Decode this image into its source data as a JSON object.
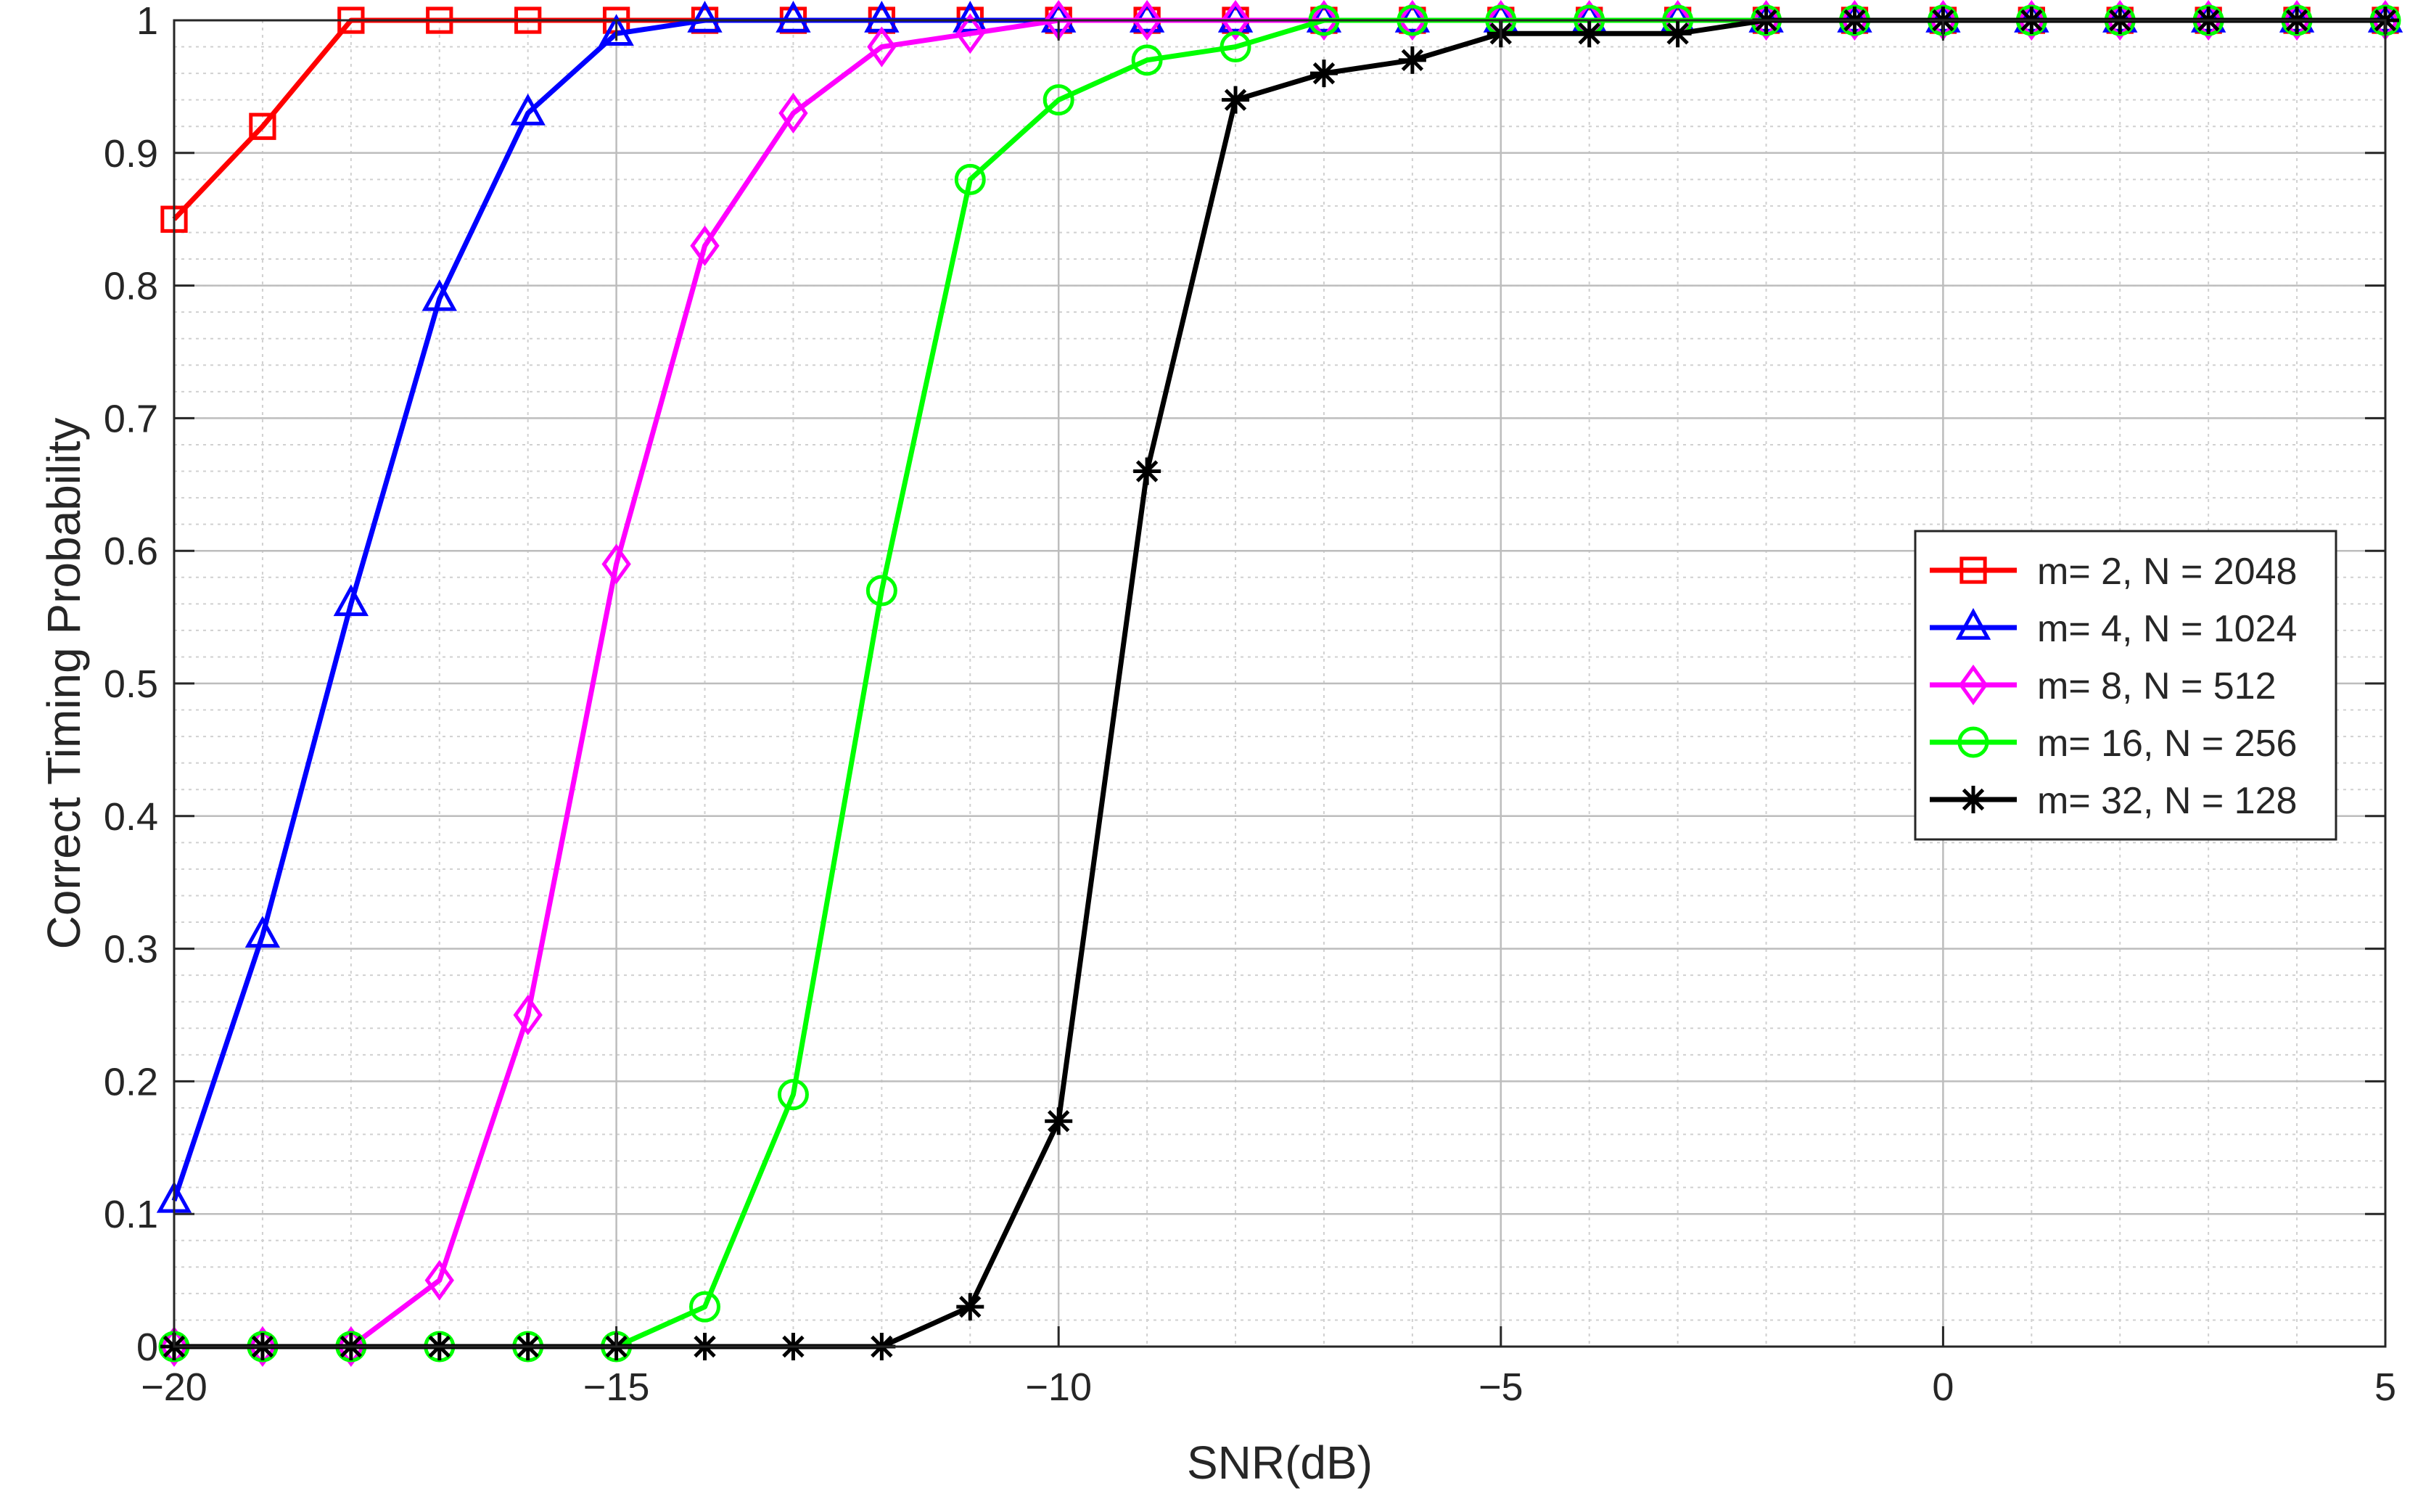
{
  "chart_data": {
    "type": "line",
    "title": "",
    "xlabel": "SNR(dB)",
    "ylabel": "Correct Timing Probability",
    "xlim": [
      -20,
      5
    ],
    "ylim": [
      0,
      1
    ],
    "x": [
      -20,
      -19,
      -18,
      -17,
      -16,
      -15,
      -14,
      -13,
      -12,
      -11,
      -10,
      -9,
      -8,
      -7,
      -6,
      -5,
      -4,
      -3,
      -2,
      -1,
      0,
      1,
      2,
      3,
      4,
      5
    ],
    "xticks": [
      -20,
      -15,
      -10,
      -5,
      0,
      5
    ],
    "xtick_labels": [
      "−20",
      "−15",
      "−10",
      "−5",
      "0",
      "5"
    ],
    "yticks": [
      0,
      0.1,
      0.2,
      0.3,
      0.4,
      0.5,
      0.6,
      0.7,
      0.8,
      0.9,
      1
    ],
    "ytick_labels": [
      "0",
      "0.1",
      "0.2",
      "0.3",
      "0.4",
      "0.5",
      "0.6",
      "0.7",
      "0.8",
      "0.9",
      "1"
    ],
    "grid": true,
    "minor_grid": true,
    "legend_position": "right",
    "series": [
      {
        "name": "m= 2, N = 2048",
        "color": "#ff0000",
        "marker": "square",
        "values": [
          0.85,
          0.92,
          1,
          1,
          1,
          1,
          1,
          1,
          1,
          1,
          1,
          1,
          1,
          1,
          1,
          1,
          1,
          1,
          1,
          1,
          1,
          1,
          1,
          1,
          1,
          1
        ]
      },
      {
        "name": "m= 4, N = 1024",
        "color": "#0000ff",
        "marker": "triangle",
        "values": [
          0.11,
          0.31,
          0.56,
          0.79,
          0.93,
          0.99,
          1,
          1,
          1,
          1,
          1,
          1,
          1,
          1,
          1,
          1,
          1,
          1,
          1,
          1,
          1,
          1,
          1,
          1,
          1,
          1
        ]
      },
      {
        "name": "m= 8, N = 512",
        "color": "#ff00ff",
        "marker": "diamond",
        "values": [
          0,
          0,
          0,
          0.05,
          0.25,
          0.59,
          0.83,
          0.93,
          0.98,
          0.99,
          1,
          1,
          1,
          1,
          1,
          1,
          1,
          1,
          1,
          1,
          1,
          1,
          1,
          1,
          1,
          1
        ]
      },
      {
        "name": "m= 16, N = 256",
        "color": "#00ff00",
        "marker": "circle",
        "values": [
          0,
          0,
          0,
          0,
          0,
          0,
          0.03,
          0.19,
          0.57,
          0.88,
          0.94,
          0.97,
          0.98,
          1,
          1,
          1,
          1,
          1,
          1,
          1,
          1,
          1,
          1,
          1,
          1,
          1
        ]
      },
      {
        "name": "m= 32, N = 128",
        "color": "#000000",
        "marker": "star",
        "values": [
          0,
          0,
          0,
          0,
          0,
          0,
          0,
          0,
          0,
          0.03,
          0.17,
          0.66,
          0.94,
          0.96,
          0.97,
          0.99,
          0.99,
          0.99,
          1,
          1,
          1,
          1,
          1,
          1,
          1,
          1
        ]
      }
    ]
  }
}
